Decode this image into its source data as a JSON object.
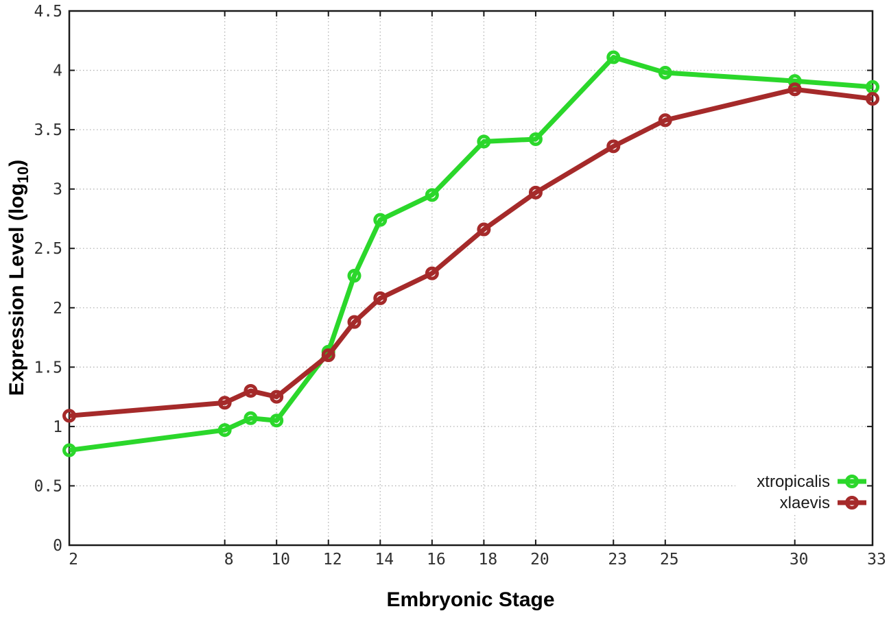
{
  "figure": {
    "background_color": "#ffffff",
    "border_color": "#1a1a1a",
    "grid_color": "#b3b3b3",
    "tick_label_color": "#303030"
  },
  "chart_data": {
    "type": "line",
    "title": "",
    "xlabel": "Embryonic Stage",
    "ylabel": "Expression Level (log10)",
    "ylabel_parts": [
      "Expression Level (log",
      "10",
      ")"
    ],
    "xlim": [
      2,
      33
    ],
    "ylim": [
      0,
      4.5
    ],
    "x_ticks": [
      2,
      8,
      10,
      12,
      14,
      16,
      18,
      20,
      23,
      25,
      30,
      33
    ],
    "x_tick_labels": [
      "2",
      "8",
      "10",
      "12",
      "14",
      "16",
      "18",
      "20",
      "23",
      "25",
      "30",
      "33"
    ],
    "y_ticks": [
      0,
      0.5,
      1,
      1.5,
      2,
      2.5,
      3,
      3.5,
      4,
      4.5
    ],
    "y_tick_labels": [
      "0",
      "0.5",
      "1",
      "1.5",
      "2",
      "2.5",
      "3",
      "3.5",
      "4",
      "4.5"
    ],
    "grid": true,
    "legend_position": "bottom-right",
    "x": [
      2,
      8,
      9,
      10,
      12,
      13,
      14,
      16,
      18,
      20,
      23,
      25,
      30,
      33
    ],
    "series": [
      {
        "name": "xtropicalis",
        "color": "#2bd72b",
        "marker": "open-circle",
        "values": [
          0.8,
          0.97,
          1.07,
          1.05,
          1.63,
          2.27,
          2.74,
          2.95,
          3.4,
          3.42,
          4.11,
          3.98,
          3.91,
          3.86
        ]
      },
      {
        "name": "xlaevis",
        "color": "#a52a2a",
        "marker": "open-circle",
        "values": [
          1.09,
          1.2,
          1.3,
          1.25,
          1.6,
          1.88,
          2.08,
          2.29,
          2.66,
          2.97,
          3.36,
          3.58,
          3.84,
          3.76
        ]
      }
    ]
  }
}
